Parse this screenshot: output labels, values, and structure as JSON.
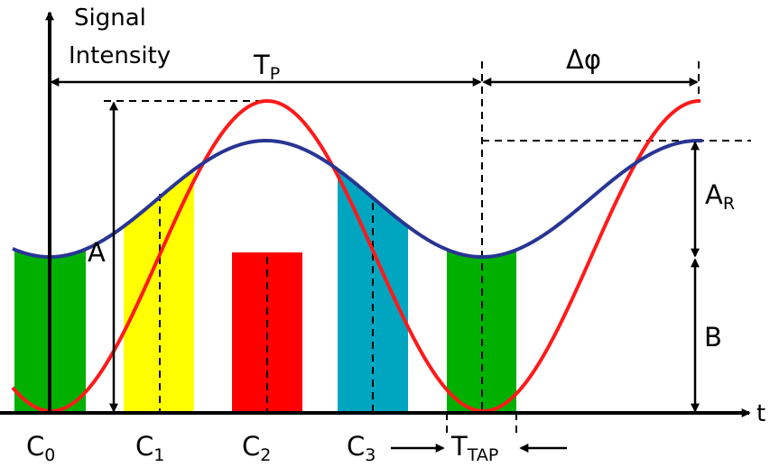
{
  "axis": {
    "y_label_line1": "Signal",
    "y_label_line2": "Intensity",
    "x_label": "t"
  },
  "annotations": {
    "period": {
      "main": "T",
      "sub": "P"
    },
    "phase": "Δφ",
    "amplitude_reflected": {
      "main": "A",
      "sub": "R"
    },
    "amplitude": "A",
    "offset": "B",
    "tap_time": {
      "main": "T",
      "sub": "TAP"
    }
  },
  "samples": [
    {
      "main": "C",
      "sub": "0",
      "color": "#00b000"
    },
    {
      "main": "C",
      "sub": "1",
      "color": "#ffff00"
    },
    {
      "main": "C",
      "sub": "2",
      "color": "#ff0000"
    },
    {
      "main": "C",
      "sub": "3",
      "color": "#00a5c0"
    }
  ],
  "tap_window_color": "#00b000",
  "colors": {
    "reflected_signal": "#283593",
    "emitted_signal": "#ff1a1a",
    "axes": "#000000"
  }
}
